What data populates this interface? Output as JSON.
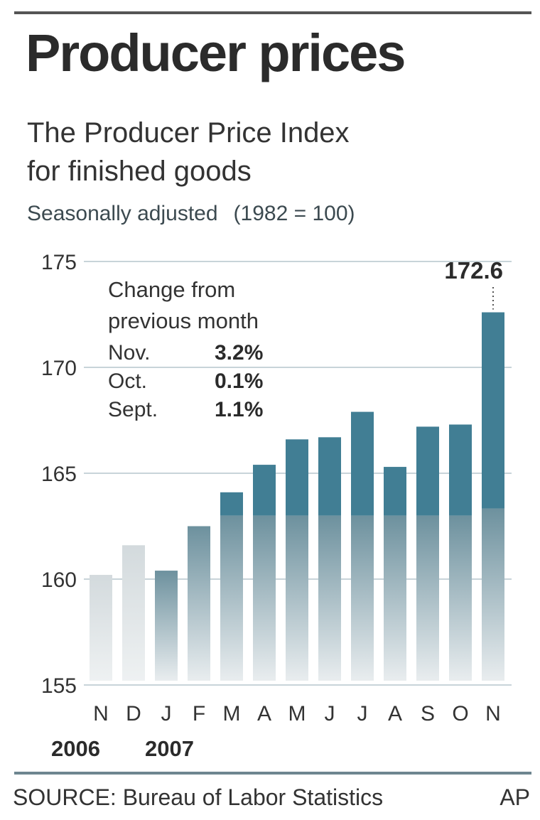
{
  "chart_data": {
    "type": "bar",
    "title": "Producer prices",
    "subtitle": [
      "The Producer Price Index",
      "for finished goods"
    ],
    "note": [
      "Seasonally adjusted",
      "(1982 = 100)"
    ],
    "categories": [
      "N",
      "D",
      "J",
      "F",
      "M",
      "A",
      "M",
      "J",
      "J",
      "A",
      "S",
      "O",
      "N"
    ],
    "year_labels": [
      {
        "label": "2006",
        "category_index": 0
      },
      {
        "label": "2007",
        "category_index": 2
      }
    ],
    "values": [
      160.2,
      161.6,
      160.4,
      162.5,
      164.1,
      165.4,
      166.6,
      166.7,
      167.9,
      165.3,
      167.2,
      167.3,
      172.6
    ],
    "highlight_value": "172.6",
    "ylim": [
      155,
      175
    ],
    "yticks": [
      "155",
      "160",
      "165",
      "170",
      "175"
    ],
    "grid": true,
    "xlabel": "",
    "ylabel": "",
    "inset": {
      "title": [
        "Change from",
        "previous month"
      ],
      "rows": [
        {
          "month": "Nov.",
          "change": "3.2%"
        },
        {
          "month": "Oct.",
          "change": "0.1%"
        },
        {
          "month": "Sept.",
          "change": "1.1%"
        }
      ]
    },
    "colors": {
      "bar": "#417e94",
      "bar_faded": "#e4e8ea",
      "axis_text": "#333333",
      "grid": "#c8d4d9"
    }
  },
  "footer": {
    "source": "SOURCE: Bureau of Labor Statistics",
    "credit": "AP"
  }
}
